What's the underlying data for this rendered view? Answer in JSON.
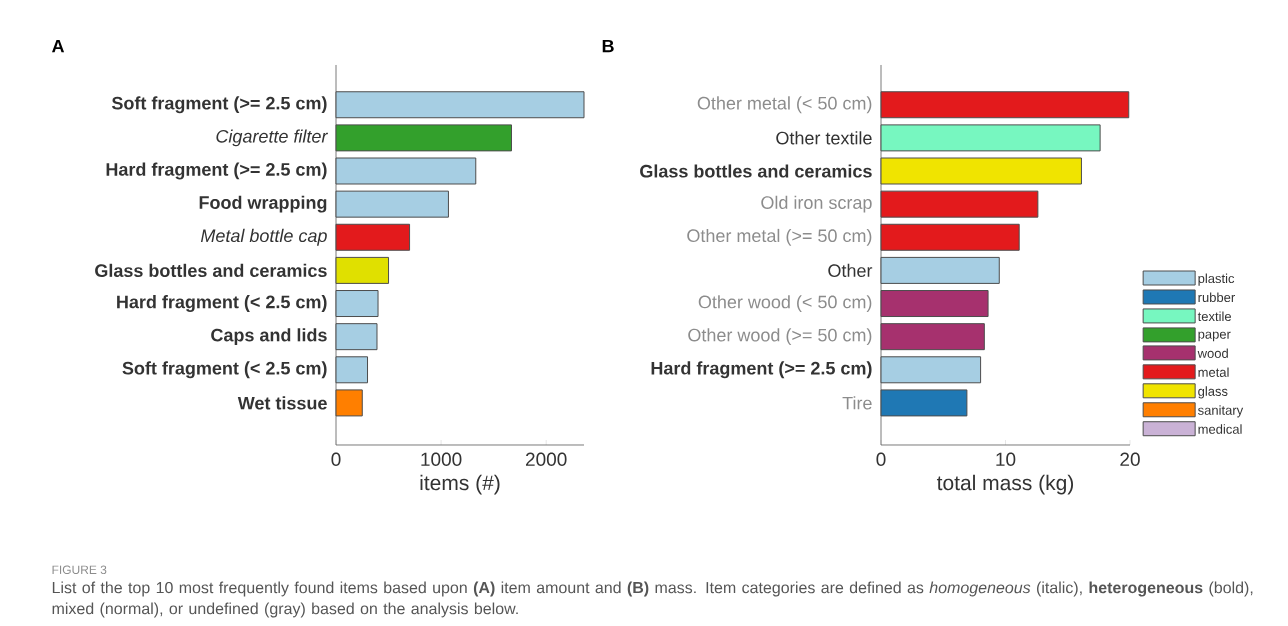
{
  "chart_data": [
    {
      "type": "bar",
      "orientation": "horizontal",
      "title": "A",
      "xlabel": "items (#)",
      "categories": [
        "Soft fragment (>= 2.5 cm)",
        "Cigarette filter",
        "Hard fragment  (>= 2.5 cm)",
        "Food wrapping",
        "Metal bottle cap",
        "Glass bottles and ceramics",
        "Hard fragment (< 2.5 cm)",
        "Caps and lids",
        "Soft fragment (<  2.5 cm)",
        "Wet tissue"
      ],
      "values": [
        2360,
        1670,
        1330,
        1070,
        700,
        500,
        400,
        390,
        300,
        250
      ],
      "colors": [
        "#a6cee3",
        "#33a02c",
        "#a6cee3",
        "#a6cee3",
        "#e31a1c",
        "#e0e000",
        "#a6cee3",
        "#a6cee3",
        "#a6cee3",
        "#ff7f00"
      ],
      "xlim": [
        0,
        2360
      ],
      "xticks": [
        0,
        1000,
        2000
      ],
      "annotations": [
        "FIGURE 3",
        "List of the top 10 most frequently found items based upon **(A)** item amount and **(B)** mass. Item categories are defined as *homogeneous* (italic), **heterogeneous** (bold), mixed (normal), or undefined (gray) based on the analysis below."
      ]
    },
    {
      "type": "bar",
      "orientation": "horizontal",
      "title": "B",
      "xlabel": "total mass (kg)",
      "categories": [
        "Other metal (< 50 cm)",
        "Other textile",
        "Glass bottles and ceramics",
        "Old iron scrap",
        "Other metal (>= 50 cm)",
        "Other",
        "Other wood (< 50 cm)",
        "Other wood (>= 50 cm)",
        "Hard fragment  (>= 2.5 cm)",
        "Tire"
      ],
      "series": [
        {
          "name": "plastic",
          "color": "#a6cee3",
          "values": [
            null,
            null,
            null,
            null,
            null,
            9.5,
            null,
            null,
            8.0,
            null
          ]
        },
        {
          "name": "rubber",
          "color": "#1f78b4",
          "values": [
            null,
            null,
            null,
            null,
            null,
            null,
            null,
            null,
            null,
            6.9
          ]
        },
        {
          "name": "textile",
          "color": "#77f7c0",
          "values": [
            null,
            17.6,
            null,
            null,
            null,
            null,
            null,
            null,
            null,
            null
          ]
        },
        {
          "name": "paper",
          "color": "#33a02c",
          "values": [
            null,
            null,
            null,
            null,
            null,
            null,
            null,
            null,
            null,
            null
          ]
        },
        {
          "name": "wood",
          "color": "#a6316e",
          "values": [
            null,
            null,
            null,
            null,
            null,
            null,
            8.6,
            8.3,
            null,
            null
          ]
        },
        {
          "name": "metal",
          "color": "#e31a1c",
          "values": [
            19.9,
            null,
            null,
            12.6,
            11.1,
            null,
            null,
            null,
            null,
            null
          ]
        },
        {
          "name": "glass",
          "color": "#f0e400",
          "values": [
            null,
            null,
            16.1,
            null,
            null,
            null,
            null,
            null,
            null,
            null
          ]
        },
        {
          "name": "sanitary",
          "color": "#ff7f00",
          "values": [
            null,
            null,
            null,
            null,
            null,
            null,
            null,
            null,
            null,
            null
          ]
        },
        {
          "name": "medical",
          "color": "#cab2d6",
          "values": [
            null,
            null,
            null,
            null,
            null,
            null,
            null,
            null,
            null,
            null
          ]
        }
      ],
      "xlim": [
        0,
        20
      ],
      "xticks": [
        0,
        10,
        20
      ],
      "legend": "right"
    }
  ]
}
